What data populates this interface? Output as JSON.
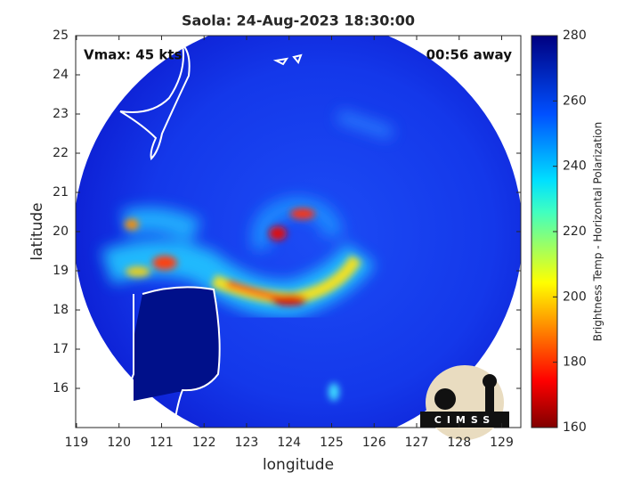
{
  "title": "Saola: 24-Aug-2023 18:30:00",
  "annotations": {
    "vmax": "Vmax: 45 kts",
    "countdown": "00:56 away"
  },
  "map": {
    "xlabel": "longitude",
    "ylabel": "latitude",
    "xlim": [
      118.98,
      129.45
    ],
    "ylim": [
      15,
      25
    ],
    "xticks": [
      119,
      120,
      121,
      122,
      123,
      124,
      125,
      126,
      127,
      128,
      129
    ],
    "yticks": [
      16,
      17,
      18,
      19,
      20,
      21,
      22,
      23,
      24,
      25
    ]
  },
  "colorbar": {
    "label": "Brightness Temp - Horizontal Polarization",
    "lim": [
      160,
      280
    ],
    "ticks": [
      160,
      180,
      200,
      220,
      240,
      260,
      280
    ]
  },
  "logo": "CIMSS"
}
